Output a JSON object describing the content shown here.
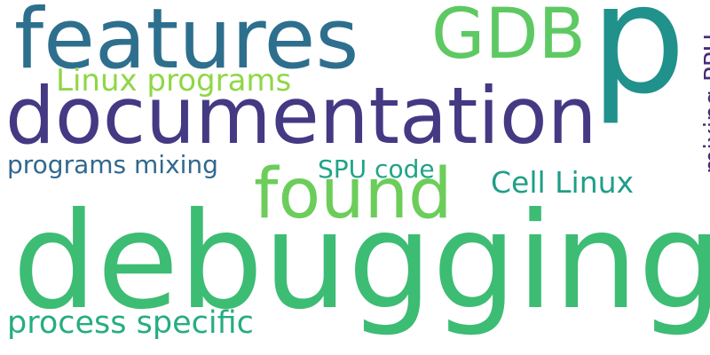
{
  "words": [
    {
      "key": "features",
      "text": "features",
      "color": "#2e6f8e"
    },
    {
      "key": "gdb",
      "text": "GDB",
      "color": "#5ec962"
    },
    {
      "key": "p",
      "text": "p",
      "color": "#21918c"
    },
    {
      "key": "linux_programs",
      "text": "Linux programs",
      "color": "#8fd744"
    },
    {
      "key": "documentation",
      "text": "documentation",
      "color": "#443983"
    },
    {
      "key": "mixing_ppu",
      "text": "mixing PPU",
      "color": "#472c7a"
    },
    {
      "key": "programs_mixing",
      "text": "programs mixing",
      "color": "#31688e"
    },
    {
      "key": "spu_code",
      "text": "SPU code",
      "color": "#20a486"
    },
    {
      "key": "found",
      "text": "found",
      "color": "#6ccd5a"
    },
    {
      "key": "cell_linux",
      "text": "Cell Linux",
      "color": "#1f9e89"
    },
    {
      "key": "debugging",
      "text": "debugging",
      "color": "#3dbc74"
    },
    {
      "key": "process_specific",
      "text": "process specific",
      "color": "#26ad81"
    }
  ]
}
